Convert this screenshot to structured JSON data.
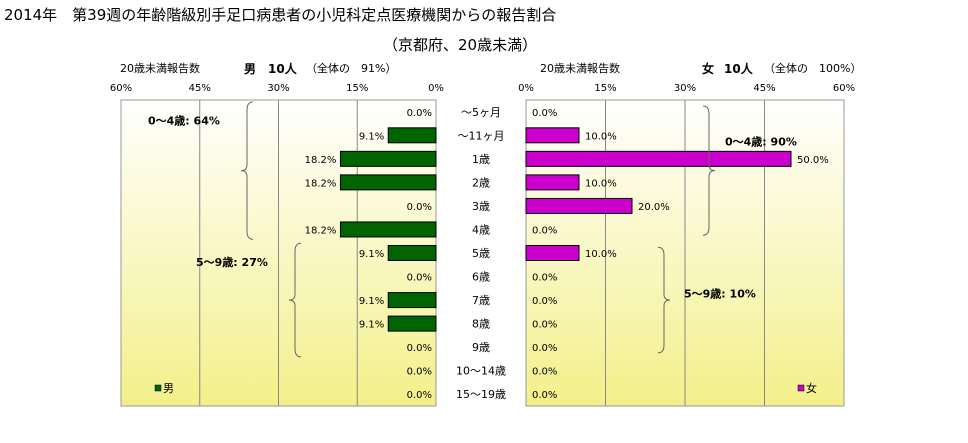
{
  "title": "2014年　第39週の年齢階級別手足口病患者の小児科定点医療機関からの報告割合",
  "subtitle": "（京都府、20歳未満）",
  "male_header": {
    "label": "20歳未満報告数",
    "sex": "男",
    "count": "10人",
    "share": "（全体の　91%）"
  },
  "female_header": {
    "label": "20歳未満報告数",
    "sex": "女",
    "count": "10人",
    "share": "（全体の　100%）"
  },
  "chart_data": [
    {
      "type": "bar",
      "orientation": "horizontal",
      "direction": "right-to-left",
      "legend": "男",
      "legend_position": "bottom-left",
      "color": "#006400",
      "categories": [
        "～5ヶ月",
        "～11ヶ月",
        "1歳",
        "2歳",
        "3歳",
        "4歳",
        "5歳",
        "6歳",
        "7歳",
        "8歳",
        "9歳",
        "10～14歳",
        "15～19歳"
      ],
      "values": [
        0.0,
        9.1,
        18.2,
        18.2,
        0.0,
        18.2,
        9.1,
        0.0,
        9.1,
        9.1,
        0.0,
        0.0,
        0.0
      ],
      "data_labels": [
        "0.0%",
        "9.1%",
        "18.2%",
        "18.2%",
        "0.0%",
        "18.2%",
        "9.1%",
        "0.0%",
        "9.1%",
        "9.1%",
        "0.0%",
        "0.0%",
        "0.0%"
      ],
      "xlim": [
        0,
        60
      ],
      "ticks": [
        "60%",
        "45%",
        "30%",
        "15%",
        "0%"
      ],
      "grid": true,
      "annotations": [
        "0～4歳: 64%",
        "5～9歳: 27%"
      ]
    },
    {
      "type": "bar",
      "orientation": "horizontal",
      "direction": "left-to-right",
      "legend": "女",
      "legend_position": "bottom-right",
      "color": "#cc00cc",
      "categories": [
        "～5ヶ月",
        "～11ヶ月",
        "1歳",
        "2歳",
        "3歳",
        "4歳",
        "5歳",
        "6歳",
        "7歳",
        "8歳",
        "9歳",
        "10～14歳",
        "15～19歳"
      ],
      "values": [
        0.0,
        10.0,
        50.0,
        10.0,
        20.0,
        0.0,
        10.0,
        0.0,
        0.0,
        0.0,
        0.0,
        0.0,
        0.0
      ],
      "data_labels": [
        "0.0%",
        "10.0%",
        "50.0%",
        "10.0%",
        "20.0%",
        "0.0%",
        "10.0%",
        "0.0%",
        "0.0%",
        "0.0%",
        "0.0%",
        "0.0%",
        "0.0%"
      ],
      "xlim": [
        0,
        60
      ],
      "ticks": [
        "0%",
        "15%",
        "30%",
        "45%",
        "60%"
      ],
      "grid": true,
      "annotations": [
        "0～4歳: 90%",
        "5～9歳: 10%"
      ]
    }
  ]
}
